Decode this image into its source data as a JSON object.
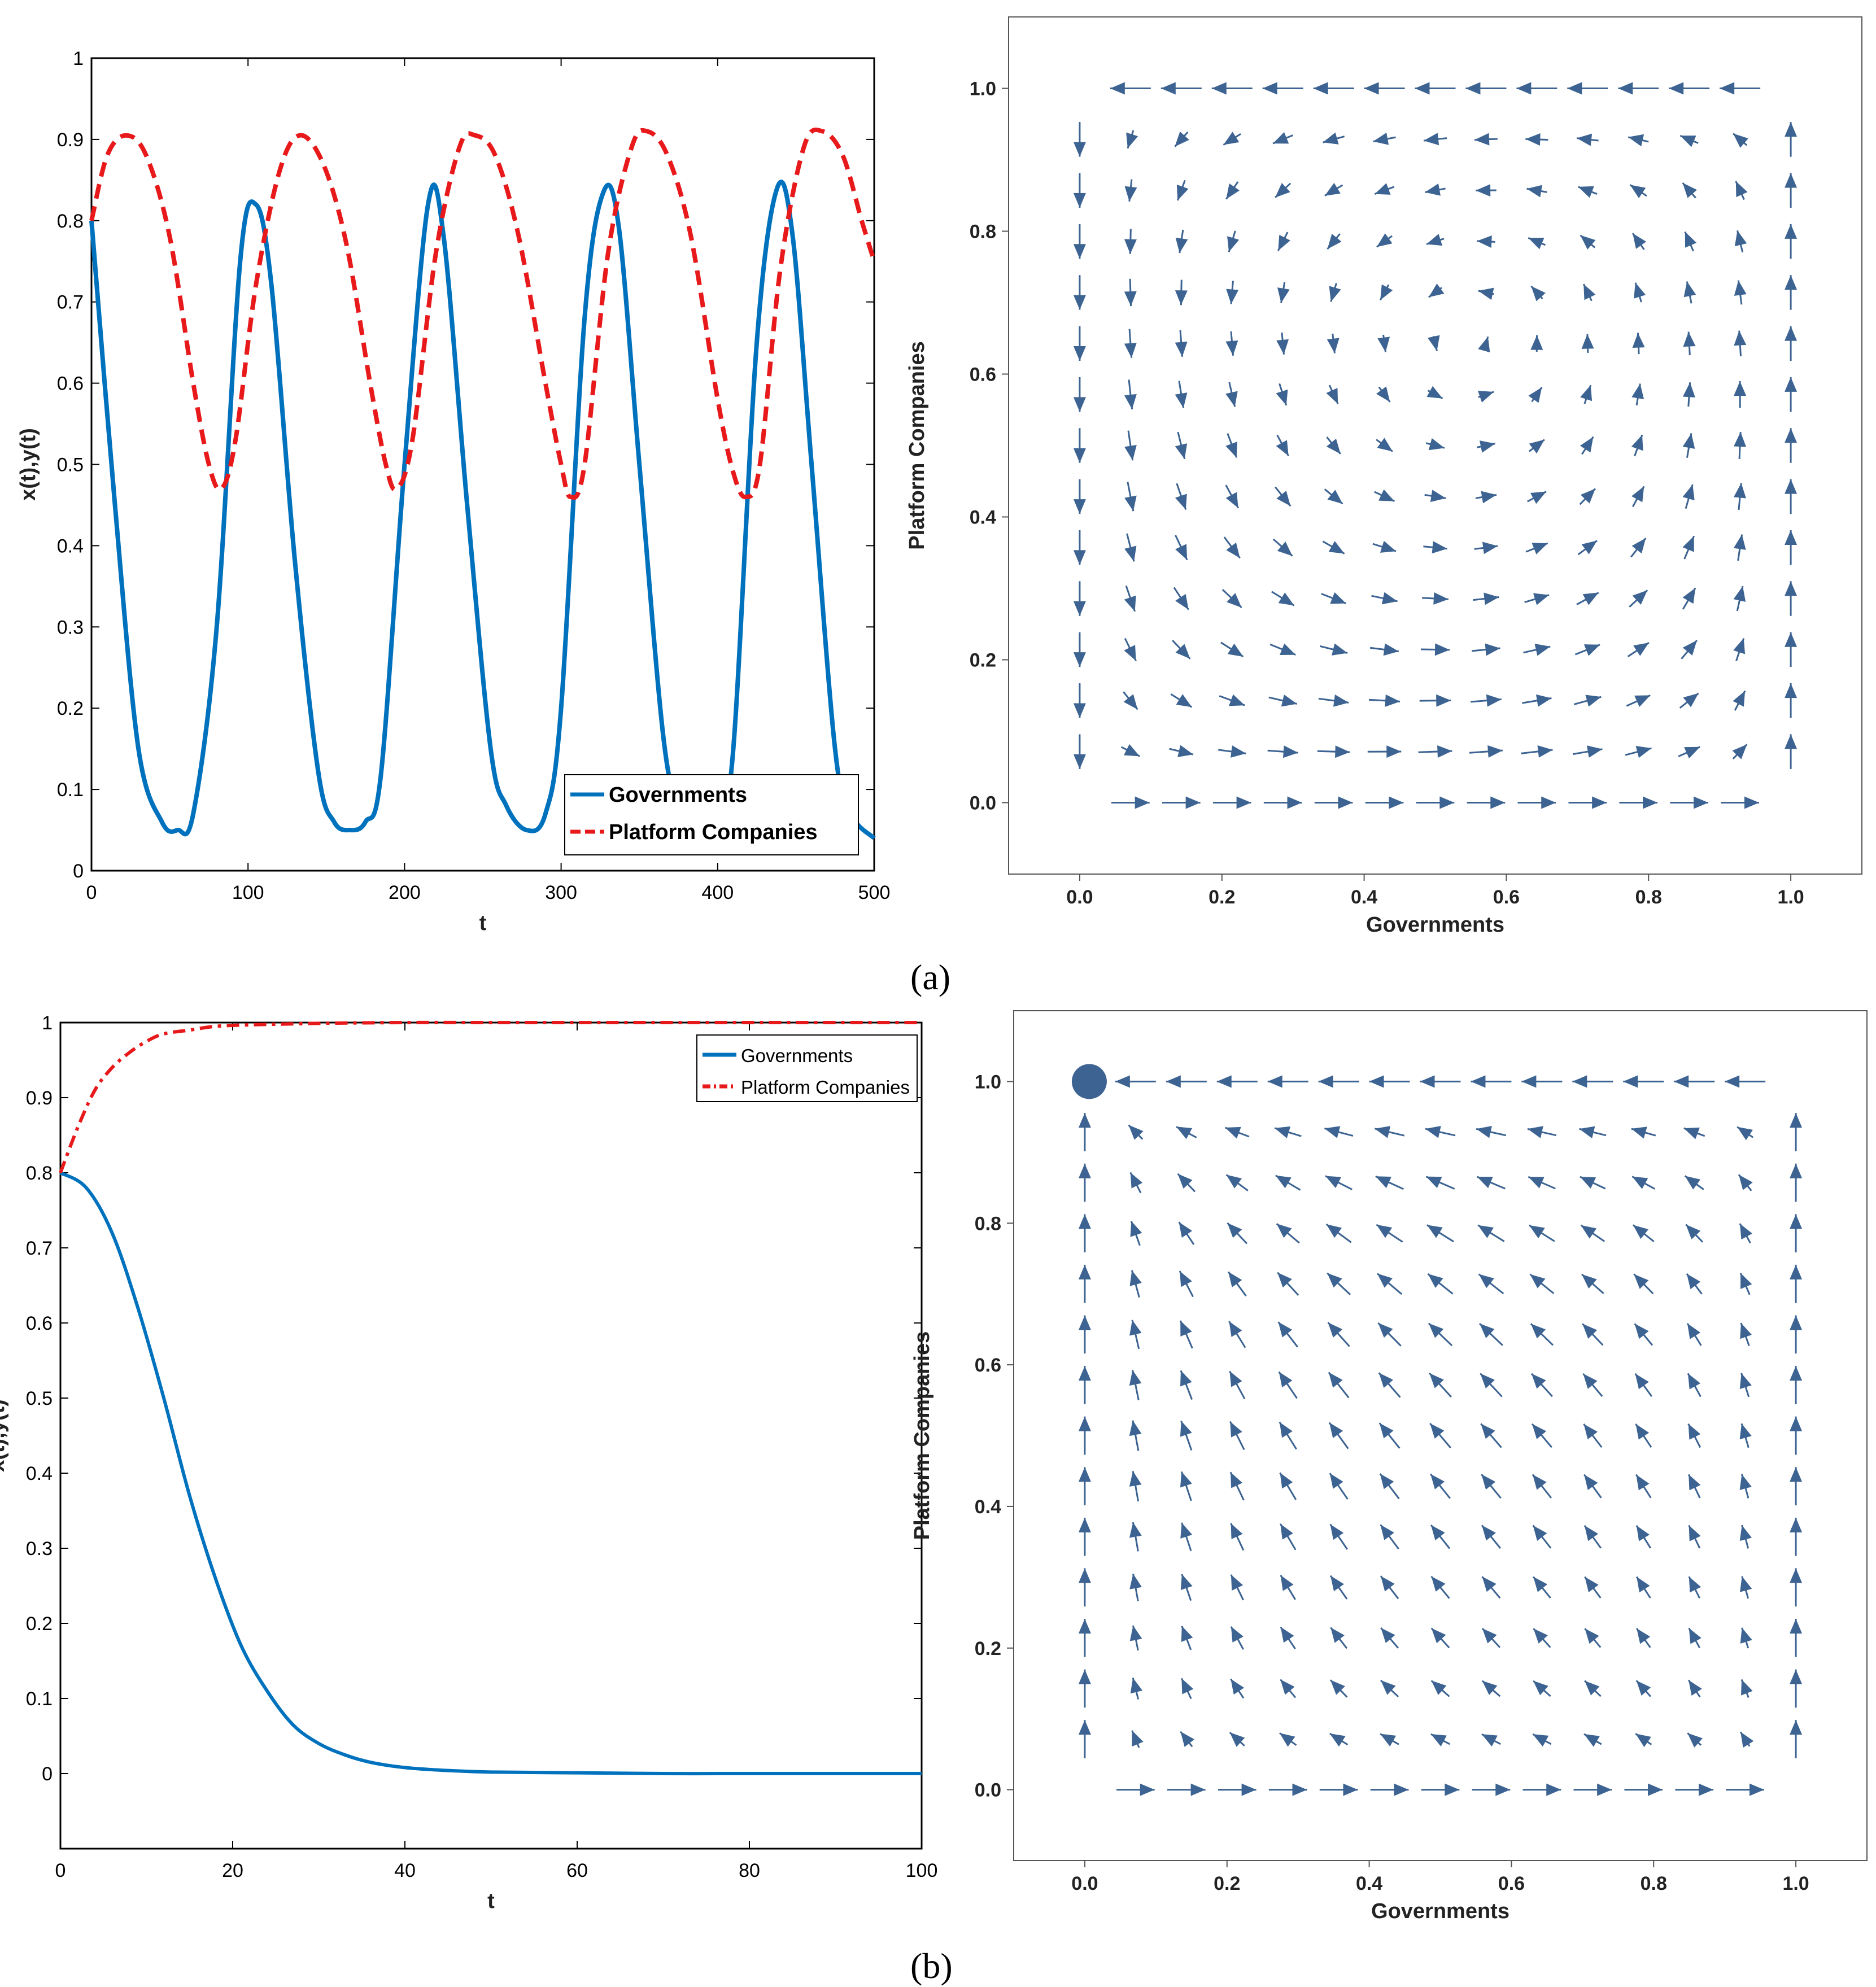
{
  "colors": {
    "blue": "#0072BD",
    "red": "#E8191B",
    "arrow": "#3C6391"
  },
  "captions": {
    "a": "(a)",
    "b": "(b)"
  },
  "chart_data": [
    {
      "id": "a_time",
      "type": "line",
      "xlabel": "t",
      "ylabel": "x(t),y(t)",
      "xlim": [
        0,
        500
      ],
      "ylim": [
        0,
        1
      ],
      "xticks": [
        "0",
        "100",
        "200",
        "300",
        "400",
        "500"
      ],
      "yticks": [
        "0",
        "0.1",
        "0.2",
        "0.3",
        "0.4",
        "0.5",
        "0.6",
        "0.7",
        "0.8",
        "0.9",
        "1"
      ],
      "legend_location": "bottom-right",
      "series": [
        {
          "name": "Governments",
          "style": "solid",
          "x": [
            0,
            15,
            30,
            45,
            55,
            65,
            80,
            95,
            105,
            115,
            130,
            145,
            155,
            165,
            175,
            185,
            200,
            215,
            225,
            240,
            255,
            265,
            278,
            290,
            300,
            315,
            327,
            337,
            350,
            365,
            375,
            388,
            400,
            410,
            425,
            438,
            448,
            460,
            475,
            485,
            500
          ],
          "values": [
            0.8,
            0.45,
            0.15,
            0.06,
            0.05,
            0.07,
            0.3,
            0.75,
            0.82,
            0.72,
            0.38,
            0.12,
            0.06,
            0.05,
            0.06,
            0.12,
            0.5,
            0.82,
            0.78,
            0.45,
            0.15,
            0.08,
            0.05,
            0.07,
            0.2,
            0.68,
            0.835,
            0.79,
            0.5,
            0.17,
            0.08,
            0.05,
            0.06,
            0.15,
            0.65,
            0.84,
            0.78,
            0.5,
            0.15,
            0.07,
            0.04
          ]
        },
        {
          "name": "Platform Companies",
          "style": "dashed",
          "x": [
            0,
            10,
            22,
            35,
            50,
            65,
            75,
            83,
            92,
            105,
            120,
            133,
            148,
            163,
            178,
            188,
            195,
            205,
            220,
            235,
            245,
            258,
            273,
            290,
            300,
            306,
            315,
            330,
            345,
            355,
            368,
            383,
            400,
            410,
            418,
            427,
            440,
            455,
            467,
            480,
            492,
            500
          ],
          "values": [
            0.8,
            0.88,
            0.905,
            0.88,
            0.78,
            0.6,
            0.5,
            0.47,
            0.53,
            0.72,
            0.86,
            0.905,
            0.87,
            0.77,
            0.6,
            0.5,
            0.47,
            0.53,
            0.76,
            0.89,
            0.905,
            0.88,
            0.78,
            0.6,
            0.5,
            0.46,
            0.5,
            0.76,
            0.89,
            0.91,
            0.88,
            0.78,
            0.58,
            0.49,
            0.46,
            0.5,
            0.74,
            0.89,
            0.91,
            0.88,
            0.8,
            0.75
          ]
        }
      ]
    },
    {
      "id": "a_phase",
      "type": "vector-field",
      "xlabel": "Governments",
      "ylabel": "Platform Companies",
      "xlim": [
        -0.1,
        1.1
      ],
      "ylim": [
        -0.1,
        1.1
      ],
      "xticks": [
        "0.0",
        "0.2",
        "0.4",
        "0.6",
        "0.8",
        "1.0"
      ],
      "yticks": [
        "0.0",
        "0.2",
        "0.4",
        "0.6",
        "0.8",
        "1.0"
      ],
      "field": {
        "cx": 0.55,
        "cy": 0.65,
        "spin": 0.9,
        "inward": 0.15
      }
    },
    {
      "id": "b_time",
      "type": "line",
      "xlabel": "t",
      "ylabel": "x(t),y(t)",
      "xlim": [
        0,
        100
      ],
      "ylim": [
        -0.1,
        1
      ],
      "xticks": [
        "0",
        "20",
        "40",
        "60",
        "80",
        "100"
      ],
      "yticks": [
        "0",
        "0.1",
        "0.2",
        "0.3",
        "0.4",
        "0.5",
        "0.6",
        "0.7",
        "0.8",
        "0.9",
        "1"
      ],
      "legend_location": "top-right",
      "series": [
        {
          "name": "Governments",
          "style": "solid",
          "x": [
            0,
            3,
            6,
            9,
            12,
            15,
            18,
            21,
            24,
            27,
            30,
            33,
            36,
            40,
            45,
            50,
            60,
            70,
            80,
            90,
            100
          ],
          "values": [
            0.8,
            0.78,
            0.72,
            0.62,
            0.5,
            0.37,
            0.26,
            0.17,
            0.11,
            0.065,
            0.04,
            0.025,
            0.015,
            0.008,
            0.004,
            0.002,
            0.001,
            0,
            0,
            0,
            0
          ]
        },
        {
          "name": "Platform Companies",
          "style": "dashdot",
          "x": [
            0,
            2,
            4,
            6,
            8,
            10,
            12,
            15,
            18,
            22,
            26,
            30,
            40,
            50,
            60,
            80,
            100
          ],
          "values": [
            0.8,
            0.86,
            0.91,
            0.94,
            0.96,
            0.975,
            0.985,
            0.99,
            0.995,
            0.997,
            0.998,
            0.999,
            1,
            1,
            1,
            1,
            1
          ]
        }
      ]
    },
    {
      "id": "b_phase",
      "type": "vector-field",
      "xlabel": "Governments",
      "ylabel": "Platform Companies",
      "xlim": [
        -0.1,
        1.1
      ],
      "ylim": [
        -0.1,
        1.1
      ],
      "xticks": [
        "0.0",
        "0.2",
        "0.4",
        "0.6",
        "0.8",
        "1.0"
      ],
      "yticks": [
        "0.0",
        "0.2",
        "0.4",
        "0.6",
        "0.8",
        "1.0"
      ],
      "stable_point": [
        0,
        1
      ],
      "field": {
        "sinkx": 0,
        "sinky": 1
      }
    }
  ]
}
